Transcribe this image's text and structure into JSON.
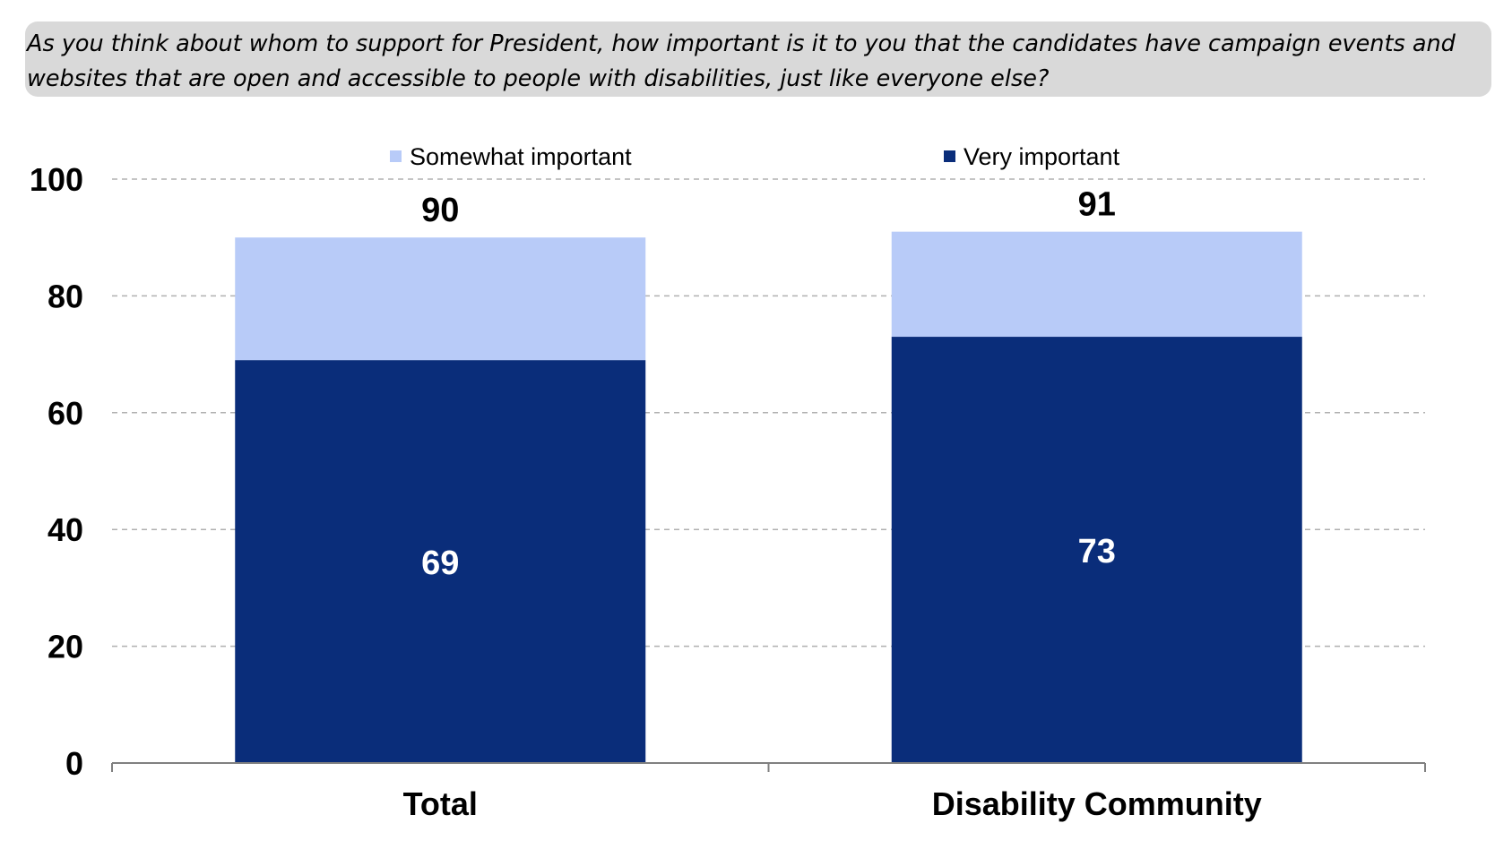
{
  "question": "As you think about whom to support for President, how important is it to you that the candidates have campaign events and websites that are open and accessible to people with disabilities, just like everyone else?",
  "colors": {
    "very": "#0a2d7a",
    "somewhat": "#b8cbf8",
    "question_bg": "#d9d9d9",
    "grid": "#b0b0b0"
  },
  "chart_data": {
    "type": "bar",
    "stacked": true,
    "categories": [
      "Total",
      "Disability Community"
    ],
    "series": [
      {
        "name": "Very important",
        "values": [
          69,
          73
        ],
        "color": "#0a2d7a"
      },
      {
        "name": "Somewhat important",
        "values": [
          21,
          18
        ],
        "color": "#b8cbf8"
      }
    ],
    "totals": [
      90,
      91
    ],
    "inner_labels": [
      69,
      73
    ],
    "y_ticks": [
      0,
      20,
      40,
      60,
      80,
      100
    ],
    "ylim": [
      0,
      100
    ],
    "grid": true,
    "legend": {
      "placement": "top",
      "items": [
        {
          "label": "Somewhat important",
          "color": "#b8cbf8"
        },
        {
          "label": "Very important",
          "color": "#0a2d7a"
        }
      ]
    },
    "title": "",
    "xlabel": "",
    "ylabel": ""
  }
}
